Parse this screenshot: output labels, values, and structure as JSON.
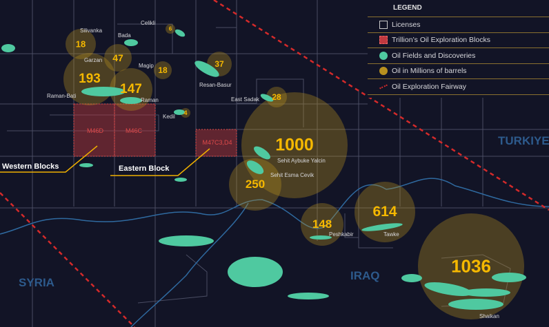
{
  "legend": {
    "title": "LEGEND",
    "items": [
      {
        "label": "Licenses",
        "icon": "license-square-icon"
      },
      {
        "label": "Trillion’s Oil Exploration Blocks",
        "icon": "exploration-block-icon",
        "color": "#c0393f"
      },
      {
        "label": "Oil Fields and Discoveries",
        "icon": "oil-field-dot-icon",
        "color": "#4fc9a0"
      },
      {
        "label": "Oil in Millions of barrels",
        "icon": "oil-volume-dot-icon",
        "color": "#b8901f"
      },
      {
        "label": "Oil Exploration Fairway",
        "icon": "fairway-dashed-line-icon",
        "color": "#d42a2a"
      }
    ]
  },
  "countries": [
    "TURKIYE",
    "IRAQ",
    "SYRIA"
  ],
  "blocks": [
    "M46D",
    "M46C",
    "M47C3,D4"
  ],
  "callouts": {
    "western": "Western Blocks",
    "eastern": "Eastern Block"
  },
  "fields": [
    {
      "name": "Silivanka",
      "value": "18"
    },
    {
      "name": "Garzan",
      "value": "47"
    },
    {
      "name": "Raman-Bati",
      "value": "193"
    },
    {
      "name": "Raman",
      "value": "147"
    },
    {
      "name": "Bada",
      "value": ""
    },
    {
      "name": "Celikli",
      "value": "6"
    },
    {
      "name": "Magip",
      "value": "18"
    },
    {
      "name": "Resan-Basur",
      "value": "37"
    },
    {
      "name": "East Sadak",
      "value": "28"
    },
    {
      "name": "Kedil",
      "value": "4"
    },
    {
      "name": "Sehit Aybuke Yalcin",
      "value": "1000"
    },
    {
      "name": "Sehit Esma Cevik",
      "value": "250"
    },
    {
      "name": "Peshkabir",
      "value": "148"
    },
    {
      "name": "Tawke",
      "value": "614"
    },
    {
      "name": "Shaikan",
      "value": "1036"
    }
  ],
  "colors": {
    "background": "#121426",
    "bubble": "#b8901f",
    "field": "#4fc9a0",
    "value": "#f5b800",
    "fairway": "#d42a2a",
    "border": "#2f6aa0"
  }
}
